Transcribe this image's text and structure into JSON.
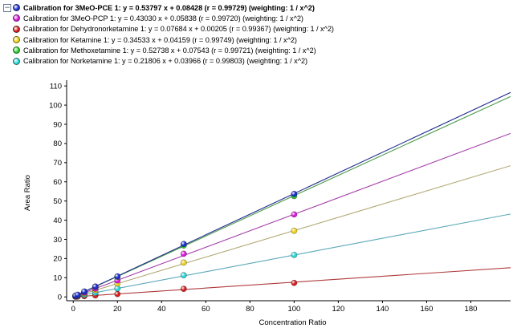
{
  "legend": {
    "toggle_symbol": "−",
    "items": [
      {
        "text": "Calibration for 3MeO-PCE 1: y = 0.53797 x + 0.08428 (r = 0.99729) (weighting: 1 / x^2)",
        "color": "#1c2fd0",
        "bold": true
      },
      {
        "text": "Calibration for 3MeO-PCP 1: y = 0.43030 x + 0.05838 (r = 0.99720) (weighting: 1 / x^2)",
        "color": "#d81ad8",
        "bold": false
      },
      {
        "text": "Calibration for Dehydronorketamine 1: y = 0.07684 x + 0.00205 (r = 0.99367) (weighting: 1 / x^2)",
        "color": "#d81c1c",
        "bold": false
      },
      {
        "text": "Calibration for Ketamine 1: y = 0.34533 x + 0.04159 (r = 0.99749) (weighting: 1 / x^2)",
        "color": "#f0d21c",
        "bold": false
      },
      {
        "text": "Calibration for Methoxetamine 1: y = 0.52738 x + 0.07543 (r = 0.99721) (weighting: 1 / x^2)",
        "color": "#2fd02f",
        "bold": false
      },
      {
        "text": "Calibration for Norketamine 1: y = 0.21806 x + 0.03966 (r = 0.99803) (weighting: 1 / x^2)",
        "color": "#2ad8d8",
        "bold": false
      }
    ]
  },
  "chart_data": {
    "type": "scatter",
    "xlabel": "Concentration Ratio",
    "ylabel": "Area Ratio",
    "xlim": [
      -3,
      198
    ],
    "ylim": [
      -2,
      113
    ],
    "xticks": [
      0,
      20,
      40,
      60,
      80,
      100,
      120,
      140,
      160,
      180
    ],
    "yticks": [
      0,
      10,
      20,
      30,
      40,
      50,
      60,
      70,
      80,
      90,
      100,
      110
    ],
    "fit_line_extent": [
      0,
      198
    ],
    "series": [
      {
        "name": "3MeO-PCE",
        "color": "#1c2fd0",
        "line_color": "#1e2a8c",
        "slope": 0.53797,
        "intercept": 0.08428,
        "points": [
          [
            1,
            0.6
          ],
          [
            2,
            1.1
          ],
          [
            5,
            2.8
          ],
          [
            10,
            5.4
          ],
          [
            20,
            10.7
          ],
          [
            50,
            27.6
          ],
          [
            100,
            53.7
          ]
        ]
      },
      {
        "name": "3MeO-PCP",
        "color": "#d81ad8",
        "line_color": "#a13aa8",
        "slope": 0.4303,
        "intercept": 0.05838,
        "points": [
          [
            1,
            0.5
          ],
          [
            2,
            0.9
          ],
          [
            5,
            2.2
          ],
          [
            10,
            4.3
          ],
          [
            20,
            8.6
          ],
          [
            50,
            22.5
          ],
          [
            100,
            43.0
          ]
        ]
      },
      {
        "name": "Dehydronorketamine",
        "color": "#d81c1c",
        "line_color": "#b03a3a",
        "slope": 0.07684,
        "intercept": 0.00205,
        "points": [
          [
            1,
            0.1
          ],
          [
            2,
            0.15
          ],
          [
            5,
            0.4
          ],
          [
            10,
            0.8
          ],
          [
            20,
            1.5
          ],
          [
            50,
            4.2
          ],
          [
            100,
            7.3
          ]
        ]
      },
      {
        "name": "Ketamine",
        "color": "#f0d21c",
        "line_color": "#b0a872",
        "slope": 0.34533,
        "intercept": 0.04159,
        "points": [
          [
            1,
            0.4
          ],
          [
            2,
            0.7
          ],
          [
            5,
            1.8
          ],
          [
            10,
            3.5
          ],
          [
            20,
            7.0
          ],
          [
            50,
            17.9
          ],
          [
            100,
            34.5
          ]
        ]
      },
      {
        "name": "Methoxetamine",
        "color": "#2fd02f",
        "line_color": "#4a9a4a",
        "slope": 0.52738,
        "intercept": 0.07543,
        "points": [
          [
            1,
            0.6
          ],
          [
            2,
            1.0
          ],
          [
            5,
            2.7
          ],
          [
            10,
            5.3
          ],
          [
            20,
            10.5
          ],
          [
            50,
            26.8
          ],
          [
            100,
            52.6
          ]
        ]
      },
      {
        "name": "Norketamine",
        "color": "#2ad8d8",
        "line_color": "#5aa8b8",
        "slope": 0.21806,
        "intercept": 0.03966,
        "points": [
          [
            1,
            0.3
          ],
          [
            2,
            0.5
          ],
          [
            5,
            1.1
          ],
          [
            10,
            2.2
          ],
          [
            20,
            4.4
          ],
          [
            50,
            11.3
          ],
          [
            100,
            21.9
          ]
        ]
      }
    ]
  }
}
